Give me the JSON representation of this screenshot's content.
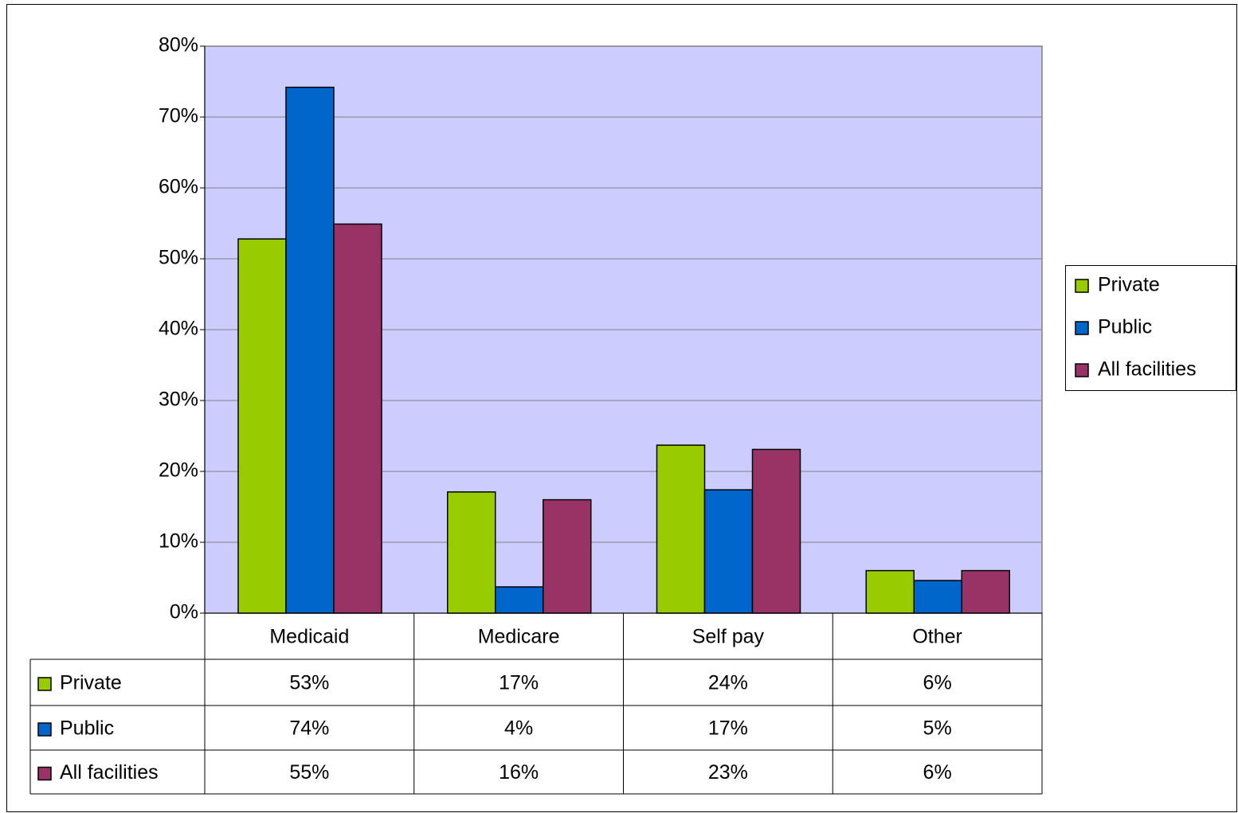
{
  "chart_data": {
    "type": "bar",
    "categories": [
      "Medicaid",
      "Medicare",
      "Self pay",
      "Other"
    ],
    "series": [
      {
        "name": "Private",
        "color": "#99cc00",
        "values": [
          52.8,
          17.1,
          23.7,
          6.0
        ],
        "value_labels": [
          "53%",
          "17%",
          "24%",
          "6%"
        ]
      },
      {
        "name": "Public",
        "color": "#0066cc",
        "values": [
          74.2,
          3.7,
          17.4,
          4.6
        ],
        "value_labels": [
          "74%",
          "4%",
          "17%",
          "5%"
        ]
      },
      {
        "name": "All facilities",
        "color": "#993366",
        "values": [
          54.9,
          16.0,
          23.1,
          6.0
        ],
        "value_labels": [
          "55%",
          "16%",
          "23%",
          "6%"
        ]
      }
    ],
    "ylim": [
      0,
      80
    ],
    "yticks": [
      {
        "value": 0,
        "label": "0%"
      },
      {
        "value": 10,
        "label": "10%"
      },
      {
        "value": 20,
        "label": "20%"
      },
      {
        "value": 30,
        "label": "30%"
      },
      {
        "value": 40,
        "label": "40%"
      },
      {
        "value": 50,
        "label": "50%"
      },
      {
        "value": 60,
        "label": "60%"
      },
      {
        "value": 70,
        "label": "70%"
      },
      {
        "value": 80,
        "label": "80%"
      }
    ],
    "grid": true,
    "plot_background": "#ccccff",
    "legend": "right"
  }
}
